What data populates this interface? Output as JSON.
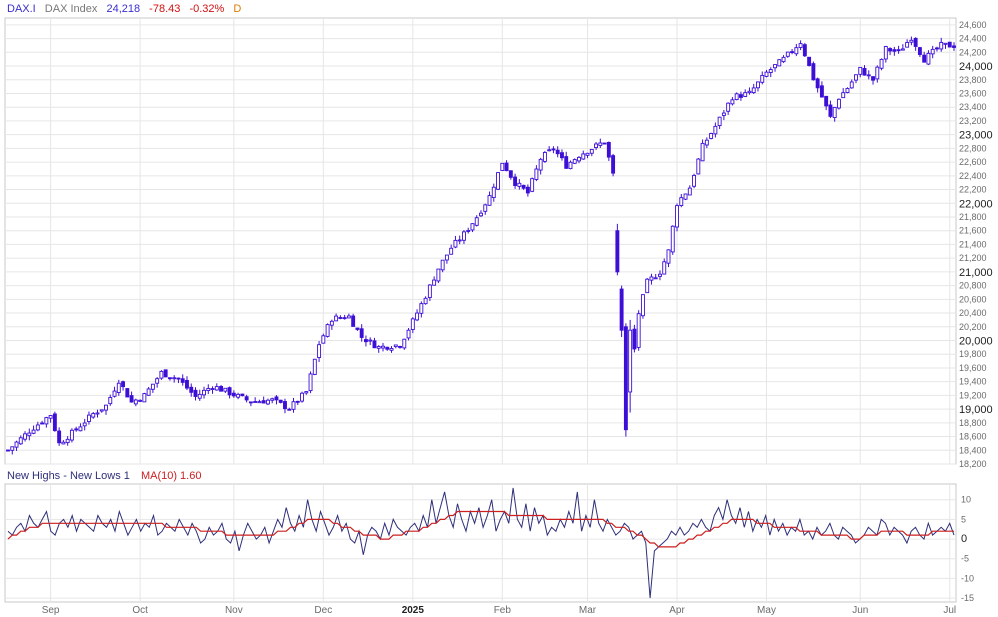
{
  "header": {
    "symbol": "DAX.I",
    "name": "DAX Index",
    "last": "24,218",
    "change": "-78.43",
    "change_pct": "-0.32%",
    "period": "D"
  },
  "indicator": {
    "label": "New Highs - New Lows 1",
    "ma_label": "MA(10) 1.60"
  },
  "colors": {
    "candle": "#3d0fd6",
    "indicator_line": "#2f2f7a",
    "ma_line": "#cc1f1f",
    "negative": "#d01010",
    "header_text": "#3a2ed1",
    "period": "#e07b00",
    "grid": "#e6e6e6",
    "frame": "#c8c8c8"
  },
  "chart_data": [
    {
      "type": "candlestick",
      "title": "",
      "series_name": "DAX.I",
      "ylim": [
        18200,
        24700
      ],
      "y_ticks": [
        18200,
        18400,
        18600,
        18800,
        19000,
        19200,
        19400,
        19600,
        19800,
        20000,
        20200,
        20400,
        20600,
        20800,
        21000,
        21200,
        21400,
        21600,
        21800,
        22000,
        22200,
        22400,
        22600,
        22800,
        23000,
        23200,
        23400,
        23600,
        23800,
        24000,
        24200,
        24400,
        24600
      ],
      "y_tick_labels": [
        "18,200",
        "18,400",
        "18,600",
        "18,800",
        "19,000",
        "19,200",
        "19,400",
        "19,600",
        "19,800",
        "20,000",
        "20,200",
        "20,400",
        "20,600",
        "20,800",
        "21,000",
        "21,200",
        "21,400",
        "21,600",
        "21,800",
        "22,000",
        "22,200",
        "22,400",
        "22,600",
        "22,800",
        "23,000",
        "23,200",
        "23,400",
        "23,600",
        "23,800",
        "24,000",
        "24,200",
        "24,400",
        "24,600"
      ],
      "major_ticks": [
        19000,
        20000,
        21000,
        22000,
        23000,
        24000
      ],
      "x_tick_labels": [
        "Sep",
        "Oct",
        "Nov",
        "Dec",
        "2025",
        "Feb",
        "Mar",
        "Apr",
        "May",
        "Jun",
        "Jul"
      ],
      "x_tick_index": [
        10,
        31,
        53,
        74,
        95,
        116,
        136,
        157,
        178,
        200,
        221
      ],
      "close_anchors": [
        [
          0,
          18400
        ],
        [
          5,
          18680
        ],
        [
          10,
          18920
        ],
        [
          12,
          18500
        ],
        [
          15,
          18650
        ],
        [
          20,
          18930
        ],
        [
          23,
          19050
        ],
        [
          26,
          19420
        ],
        [
          29,
          19100
        ],
        [
          32,
          19200
        ],
        [
          36,
          19530
        ],
        [
          40,
          19440
        ],
        [
          44,
          19180
        ],
        [
          48,
          19340
        ],
        [
          53,
          19210
        ],
        [
          57,
          19110
        ],
        [
          62,
          19130
        ],
        [
          66,
          19010
        ],
        [
          70,
          19250
        ],
        [
          73,
          19950
        ],
        [
          76,
          20320
        ],
        [
          80,
          20350
        ],
        [
          83,
          20050
        ],
        [
          87,
          19900
        ],
        [
          92,
          19940
        ],
        [
          95,
          20280
        ],
        [
          98,
          20650
        ],
        [
          101,
          21050
        ],
        [
          104,
          21350
        ],
        [
          107,
          21550
        ],
        [
          110,
          21800
        ],
        [
          113,
          22100
        ],
        [
          116,
          22600
        ],
        [
          119,
          22300
        ],
        [
          122,
          22150
        ],
        [
          125,
          22650
        ],
        [
          128,
          22800
        ],
        [
          131,
          22550
        ],
        [
          134,
          22700
        ],
        [
          137,
          22800
        ],
        [
          140,
          22900
        ],
        [
          142,
          22420
        ],
        [
          143,
          21850
        ],
        [
          144,
          21480
        ],
        [
          145,
          20650
        ],
        [
          147,
          19870
        ],
        [
          148,
          20400
        ],
        [
          150,
          20850
        ],
        [
          153,
          21000
        ],
        [
          155,
          21300
        ],
        [
          157,
          22000
        ],
        [
          160,
          22230
        ],
        [
          163,
          22830
        ],
        [
          166,
          23120
        ],
        [
          170,
          23550
        ],
        [
          174,
          23600
        ],
        [
          178,
          23900
        ],
        [
          182,
          24100
        ],
        [
          186,
          24350
        ],
        [
          189,
          23820
        ],
        [
          191,
          23550
        ],
        [
          193,
          23250
        ],
        [
          195,
          23540
        ],
        [
          197,
          23680
        ],
        [
          200,
          23950
        ],
        [
          203,
          23800
        ],
        [
          206,
          24250
        ],
        [
          209,
          24200
        ],
        [
          212,
          24420
        ],
        [
          215,
          24100
        ],
        [
          219,
          24300
        ]
      ],
      "ohlc_points": [
        [
          143,
          21600,
          21700,
          20950,
          21000
        ],
        [
          144,
          20750,
          20800,
          20050,
          20150
        ],
        [
          145,
          20200,
          20250,
          18600,
          18700
        ],
        [
          146,
          19250,
          20300,
          18950,
          20150
        ]
      ]
    },
    {
      "type": "line",
      "title": "",
      "series": [
        {
          "name": "New Highs - New Lows 1",
          "values": [
            2,
            1,
            3,
            4,
            2,
            6,
            4,
            3,
            5,
            7,
            2,
            1,
            4,
            5,
            3,
            6,
            2,
            5,
            4,
            3,
            2,
            6,
            4,
            3,
            5,
            2,
            7,
            4,
            1,
            3,
            5,
            2,
            4,
            3,
            6,
            1,
            2,
            4,
            3,
            2,
            5,
            3,
            1,
            4,
            2,
            -1,
            0,
            3,
            1,
            2,
            4,
            0,
            -1,
            2,
            -3,
            1,
            4,
            2,
            0,
            1,
            3,
            -1,
            2,
            5,
            3,
            8,
            4,
            2,
            6,
            3,
            10,
            5,
            2,
            7,
            4,
            1,
            3,
            6,
            2,
            4,
            0,
            -1,
            2,
            -4,
            1,
            3,
            2,
            0,
            4,
            1,
            5,
            3,
            2,
            1,
            3,
            4,
            2,
            6,
            3,
            10,
            4,
            8,
            12,
            6,
            3,
            9,
            5,
            2,
            7,
            4,
            8,
            3,
            6,
            10,
            2,
            5,
            7,
            4,
            13,
            5,
            3,
            9,
            2,
            8,
            4,
            6,
            1,
            3,
            2,
            5,
            3,
            7,
            4,
            12,
            2,
            6,
            3,
            10,
            4,
            2,
            5,
            3,
            1,
            2,
            4,
            3,
            0,
            1,
            2,
            -1,
            -15,
            -3,
            -2,
            -1,
            0,
            2,
            1,
            3,
            1,
            2,
            4,
            3,
            5,
            3,
            2,
            6,
            8,
            5,
            10,
            6,
            4,
            8,
            3,
            7,
            2,
            5,
            3,
            6,
            1,
            5,
            2,
            4,
            1,
            3,
            2,
            5,
            1,
            2,
            0,
            3,
            1,
            2,
            4,
            1,
            0,
            3,
            2,
            1,
            -1,
            0,
            1,
            3,
            2,
            1,
            5,
            4,
            1,
            3,
            2,
            1,
            -1,
            2,
            3,
            1,
            0,
            4,
            1,
            2,
            3,
            2,
            4,
            1
          ]
        },
        {
          "name": "MA(10)",
          "values": [
            0,
            1,
            1,
            2,
            2,
            3,
            3,
            3,
            4,
            4,
            4,
            4,
            4,
            4,
            4,
            4,
            4,
            4,
            4,
            4,
            4,
            4,
            4,
            4,
            4,
            4,
            4,
            4,
            4,
            4,
            4,
            4,
            4,
            4,
            4,
            4,
            4,
            3,
            3,
            3,
            3,
            3,
            3,
            3,
            3,
            2,
            2,
            2,
            2,
            2,
            2,
            1,
            1,
            1,
            1,
            1,
            1,
            1,
            1,
            1,
            1,
            1,
            1,
            2,
            2,
            2,
            3,
            3,
            4,
            4,
            5,
            5,
            5,
            5,
            5,
            5,
            4,
            4,
            3,
            3,
            3,
            2,
            2,
            1,
            1,
            1,
            1,
            0,
            0,
            0,
            1,
            1,
            1,
            2,
            2,
            2,
            2,
            3,
            3,
            4,
            4,
            5,
            5,
            6,
            6,
            7,
            7,
            7,
            7,
            7,
            7,
            7,
            7,
            7,
            7,
            7,
            7,
            6,
            6,
            6,
            6,
            6,
            6,
            6,
            6,
            6,
            5,
            5,
            5,
            5,
            5,
            5,
            5,
            5,
            5,
            5,
            5,
            5,
            5,
            5,
            4,
            4,
            3,
            3,
            3,
            2,
            2,
            1,
            1,
            0,
            -1,
            -1,
            -2,
            -2,
            -2,
            -2,
            -2,
            -1,
            -1,
            0,
            0,
            1,
            1,
            2,
            2,
            3,
            3,
            4,
            4,
            5,
            5,
            5,
            5,
            5,
            5,
            4,
            4,
            4,
            4,
            3,
            3,
            3,
            3,
            3,
            3,
            2,
            2,
            2,
            2,
            2,
            1,
            1,
            1,
            1,
            1,
            1,
            1,
            0,
            0,
            0,
            1,
            1,
            1,
            1,
            2,
            2,
            2,
            2,
            2,
            2,
            1,
            1,
            1,
            1,
            1,
            1,
            2,
            2,
            2,
            2,
            2,
            2
          ]
        }
      ],
      "ylim": [
        -16,
        14
      ],
      "y_ticks": [
        10,
        5,
        0,
        -5,
        -10,
        -15
      ],
      "y_tick_labels": [
        "10",
        "5",
        "0",
        "-5",
        "-10",
        "-15"
      ],
      "x_tick_labels": [
        "Sep",
        "Oct",
        "Nov",
        "Dec",
        "2025",
        "Feb",
        "Mar",
        "Apr",
        "May",
        "Jun",
        "Jul"
      ],
      "x_tick_index": [
        10,
        31,
        53,
        74,
        95,
        116,
        136,
        157,
        178,
        200,
        221
      ]
    }
  ]
}
